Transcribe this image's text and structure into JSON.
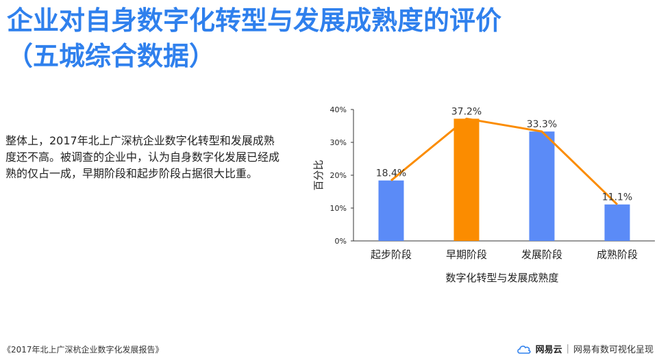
{
  "title": {
    "line1": "企业对自身数字化转型与发展成熟度的评价",
    "line2": "（五城综合数据）"
  },
  "summary": "整体上，2017年北上广深杭企业数字化转型和发展成熟度还不高。被调查的企业中，认为自身数字化发展已经成熟的仅占一成，早期阶段和起步阶段占据很大比重。",
  "footer": {
    "source": "《2017年北上广深杭企业数字化发展报告》",
    "brand_name": "网易云",
    "separator": "|",
    "tagline": "网易有数可视化呈现"
  },
  "chart_data": {
    "type": "bar",
    "categories": [
      "起步阶段",
      "早期阶段",
      "发展阶段",
      "成熟阶段"
    ],
    "values": [
      18.4,
      37.2,
      33.3,
      11.1
    ],
    "value_labels": [
      "18.4%",
      "37.2%",
      "33.3%",
      "11.1%"
    ],
    "highlight_index": 1,
    "xlabel": "数字化转型与发展成熟度",
    "ylabel": "百分比",
    "ylim": [
      0,
      40
    ],
    "yticks": [
      0,
      10,
      20,
      30,
      40
    ],
    "ytick_labels": [
      "0%",
      "10%",
      "20%",
      "30%",
      "40%"
    ],
    "overlay": "line",
    "colors": {
      "bar": "#5b8bf7",
      "highlight": "#fb8c00",
      "line": "#fb8c00",
      "axis": "#333333"
    }
  }
}
